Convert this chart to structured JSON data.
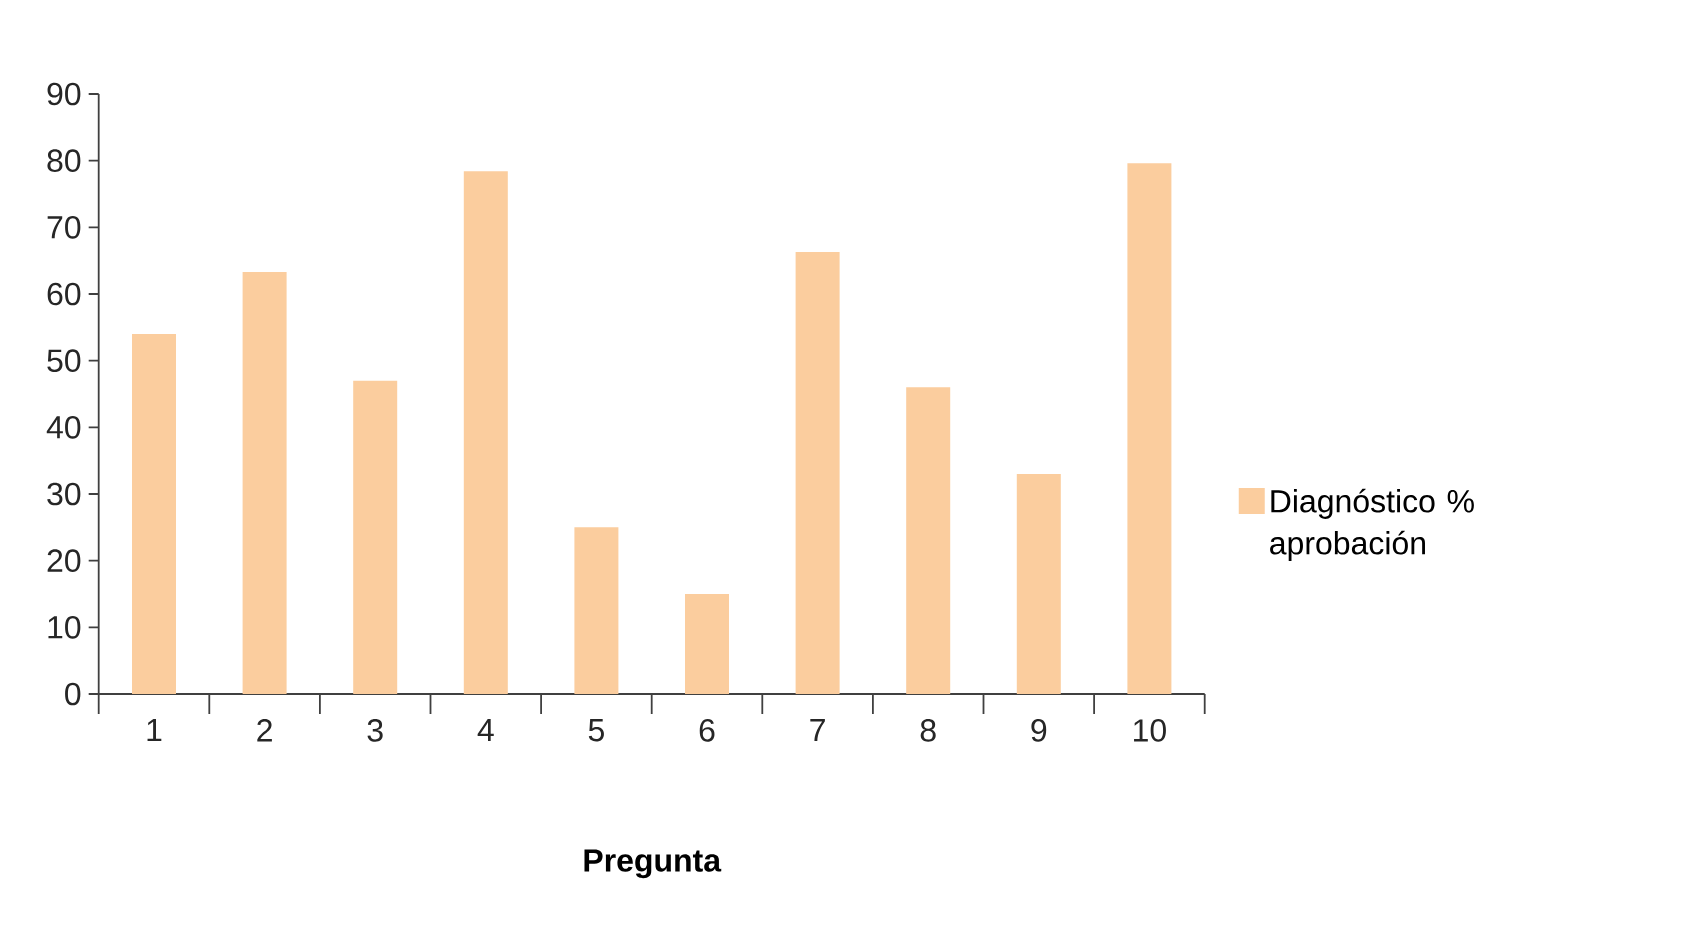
{
  "chart_data": {
    "type": "bar",
    "xlabel": "Pregunta",
    "categories": [
      "1",
      "2",
      "3",
      "4",
      "5",
      "6",
      "7",
      "8",
      "9",
      "10"
    ],
    "series": [
      {
        "name": "Diagnóstico % aprobación",
        "color": "#fbcd9e",
        "values": [
          54,
          63.3,
          47,
          78.4,
          25,
          15,
          66.3,
          46,
          33,
          79.6
        ]
      }
    ],
    "ylim": [
      0,
      90
    ],
    "yticks": [
      0,
      10,
      20,
      30,
      40,
      50,
      60,
      70,
      80,
      90
    ],
    "legend": "right"
  }
}
